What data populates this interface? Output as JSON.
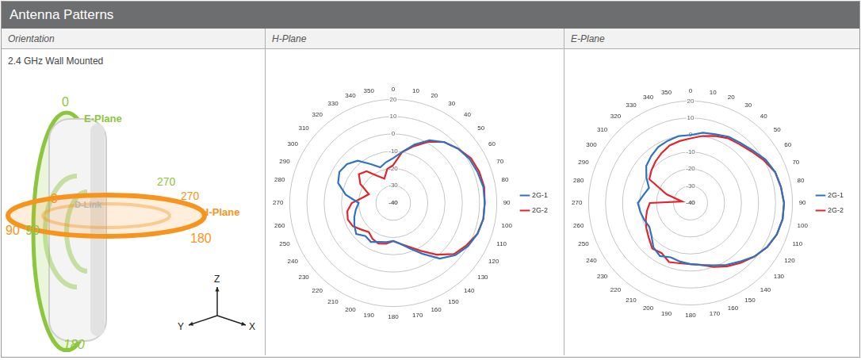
{
  "header": {
    "title": "Antenna Patterns"
  },
  "columns": [
    "Orientation",
    "H-Plane",
    "E-Plane"
  ],
  "orientation": {
    "title": "2.4 GHz Wall Mounted",
    "e_plane_label": "E-Plane",
    "h_plane_label": "H-Plane",
    "e_plane_angles": [
      "0",
      "90",
      "180",
      "270"
    ],
    "h_plane_angles": [
      "0",
      "90",
      "180",
      "270"
    ],
    "logo": "D-Link",
    "axes": [
      "Z",
      "Y",
      "X"
    ]
  },
  "chart_data": [
    {
      "type": "radar",
      "categories": [
        "0",
        "10",
        "20",
        "30",
        "40",
        "50",
        "60",
        "70",
        "80",
        "90",
        "100",
        "110",
        "120",
        "130",
        "140",
        "150",
        "160",
        "170",
        "180",
        "190",
        "200",
        "210",
        "220",
        "230",
        "240",
        "250",
        "260",
        "270",
        "280",
        "290",
        "300",
        "310",
        "320",
        "330",
        "340",
        "350"
      ],
      "ylim": [
        -40,
        20
      ],
      "yticks": [
        -40,
        -30,
        -20,
        -10,
        0,
        10,
        20
      ],
      "grid": true,
      "legend": "right",
      "series": [
        {
          "name": "2G-1",
          "color": "#2f73c0",
          "values": [
            -14,
            -10,
            -4,
            2,
            6,
            9,
            11,
            12,
            13,
            13,
            13,
            12,
            10,
            7,
            2,
            -6,
            -12,
            -16,
            -18,
            -17,
            -16,
            -14,
            -15,
            -12,
            -14,
            -16,
            -18,
            -20,
            -12,
            -6,
            -4,
            -5,
            -8,
            -14,
            -18,
            -16
          ]
        },
        {
          "name": "2G-2",
          "color": "#e0262c",
          "values": [
            -18,
            -10,
            -5,
            1,
            6,
            9,
            12,
            13,
            13.5,
            13,
            13,
            12,
            9,
            6,
            -1,
            -8,
            -13,
            -16,
            -18,
            -16,
            -15,
            -16,
            -18,
            -16,
            -13,
            -12,
            -13,
            -16,
            -22,
            -25,
            -18,
            -14,
            -16,
            -22,
            -25,
            -20
          ]
        }
      ]
    },
    {
      "type": "radar",
      "categories": [
        "0",
        "10",
        "20",
        "30",
        "40",
        "50",
        "60",
        "70",
        "80",
        "90",
        "100",
        "110",
        "120",
        "130",
        "140",
        "150",
        "160",
        "170",
        "180",
        "190",
        "200",
        "210",
        "220",
        "230",
        "240",
        "250",
        "260",
        "270",
        "280",
        "290",
        "300",
        "310",
        "320",
        "330",
        "340",
        "350"
      ],
      "ylim": [
        -40,
        20
      ],
      "yticks": [
        -40,
        -30,
        -20,
        -10,
        0,
        10,
        20
      ],
      "grid": true,
      "legend": "right",
      "series": [
        {
          "name": "2G-1",
          "color": "#2f73c0",
          "values": [
            0,
            2,
            3,
            5,
            6,
            8,
            11,
            13,
            14,
            15,
            15,
            14,
            12,
            9,
            5,
            2,
            -1,
            -3,
            -4,
            -5,
            -6,
            -4,
            -6,
            -10,
            -12,
            -11,
            -10,
            -9,
            -12,
            -14,
            -10,
            -6,
            -4,
            -2,
            -1,
            0
          ]
        },
        {
          "name": "2G-2",
          "color": "#e0262c",
          "values": [
            -2,
            0,
            2,
            4,
            5,
            7,
            10,
            13,
            14,
            15,
            15,
            14,
            12,
            9,
            6,
            3,
            0,
            -3,
            -4,
            -4,
            -3,
            -6,
            -5,
            -8,
            -10,
            -12,
            -14,
            -16,
            -35,
            -25,
            -12,
            -10,
            -8,
            -6,
            -4,
            -3
          ]
        }
      ]
    }
  ]
}
